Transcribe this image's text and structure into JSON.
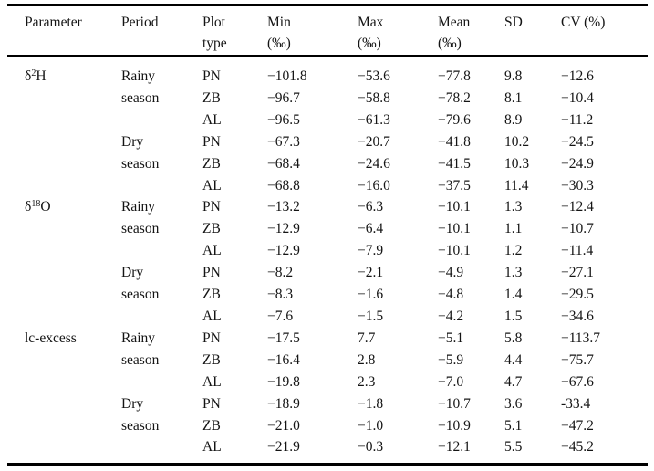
{
  "colors": {
    "text": "#141414",
    "rule": "#000000",
    "background": "#ffffff"
  },
  "table": {
    "columns": [
      {
        "id": "parameter",
        "line1": "Parameter",
        "line2": ""
      },
      {
        "id": "period",
        "line1": "Period",
        "line2": ""
      },
      {
        "id": "plot_type",
        "line1": "Plot",
        "line2": "type"
      },
      {
        "id": "min",
        "line1": "Min",
        "line2": "(‰)"
      },
      {
        "id": "max",
        "line1": "Max",
        "line2": "(‰)"
      },
      {
        "id": "mean",
        "line1": "Mean",
        "line2": "(‰)"
      },
      {
        "id": "sd",
        "line1": "SD",
        "line2": ""
      },
      {
        "id": "cv",
        "line1": "CV (%)",
        "line2": ""
      }
    ],
    "rows": [
      {
        "parameter": {
          "base": "δ",
          "sup": "2",
          "tail": "H"
        },
        "period": "Rainy",
        "plot_type": "PN",
        "min": "−101.8",
        "max": "−53.6",
        "mean": "−77.8",
        "sd": "9.8",
        "cv": "−12.6"
      },
      {
        "parameter": null,
        "period": "season",
        "plot_type": "ZB",
        "min": "−96.7",
        "max": "−58.8",
        "mean": "−78.2",
        "sd": "8.1",
        "cv": "−10.4"
      },
      {
        "parameter": null,
        "period": "",
        "plot_type": "AL",
        "min": "−96.5",
        "max": "−61.3",
        "mean": "−79.6",
        "sd": "8.9",
        "cv": "−11.2"
      },
      {
        "parameter": null,
        "period": "Dry",
        "plot_type": "PN",
        "min": "−67.3",
        "max": "−20.7",
        "mean": "−41.8",
        "sd": "10.2",
        "cv": "−24.5"
      },
      {
        "parameter": null,
        "period": "season",
        "plot_type": "ZB",
        "min": "−68.4",
        "max": "−24.6",
        "mean": "−41.5",
        "sd": "10.3",
        "cv": "−24.9"
      },
      {
        "parameter": null,
        "period": "",
        "plot_type": "AL",
        "min": "−68.8",
        "max": "−16.0",
        "mean": "−37.5",
        "sd": "11.4",
        "cv": "−30.3"
      },
      {
        "parameter": {
          "base": "δ",
          "sup": "18",
          "tail": "O"
        },
        "period": "Rainy",
        "plot_type": "PN",
        "min": "−13.2",
        "max": "−6.3",
        "mean": "−10.1",
        "sd": "1.3",
        "cv": "−12.4"
      },
      {
        "parameter": null,
        "period": "season",
        "plot_type": "ZB",
        "min": "−12.9",
        "max": "−6.4",
        "mean": "−10.1",
        "sd": "1.1",
        "cv": "−10.7"
      },
      {
        "parameter": null,
        "period": "",
        "plot_type": "AL",
        "min": "−12.9",
        "max": "−7.9",
        "mean": "−10.1",
        "sd": "1.2",
        "cv": "−11.4"
      },
      {
        "parameter": null,
        "period": "Dry",
        "plot_type": "PN",
        "min": "−8.2",
        "max": "−2.1",
        "mean": "−4.9",
        "sd": "1.3",
        "cv": "−27.1"
      },
      {
        "parameter": null,
        "period": "season",
        "plot_type": "ZB",
        "min": "−8.3",
        "max": "−1.6",
        "mean": "−4.8",
        "sd": "1.4",
        "cv": "−29.5"
      },
      {
        "parameter": null,
        "period": "",
        "plot_type": "AL",
        "min": "−7.6",
        "max": "−1.5",
        "mean": "−4.2",
        "sd": "1.5",
        "cv": "−34.6"
      },
      {
        "parameter": {
          "base": "lc-excess",
          "sup": "",
          "tail": ""
        },
        "period": "Rainy",
        "plot_type": "PN",
        "min": "−17.5",
        "max": "7.7",
        "mean": "−5.1",
        "sd": "5.8",
        "cv": "−113.7"
      },
      {
        "parameter": null,
        "period": "season",
        "plot_type": "ZB",
        "min": "−16.4",
        "max": "2.8",
        "mean": "−5.9",
        "sd": "4.4",
        "cv": "−75.7"
      },
      {
        "parameter": null,
        "period": "",
        "plot_type": "AL",
        "min": "−19.8",
        "max": "2.3",
        "mean": "−7.0",
        "sd": "4.7",
        "cv": "−67.6"
      },
      {
        "parameter": null,
        "period": "Dry",
        "plot_type": "PN",
        "min": "−18.9",
        "max": "−1.8",
        "mean": "−10.7",
        "sd": "3.6",
        "cv": "-33.4"
      },
      {
        "parameter": null,
        "period": "season",
        "plot_type": "ZB",
        "min": "−21.0",
        "max": "−1.0",
        "mean": "−10.9",
        "sd": "5.1",
        "cv": "−47.2"
      },
      {
        "parameter": null,
        "period": "",
        "plot_type": "AL",
        "min": "−21.9",
        "max": "−0.3",
        "mean": "−12.1",
        "sd": "5.5",
        "cv": "−45.2"
      }
    ]
  }
}
